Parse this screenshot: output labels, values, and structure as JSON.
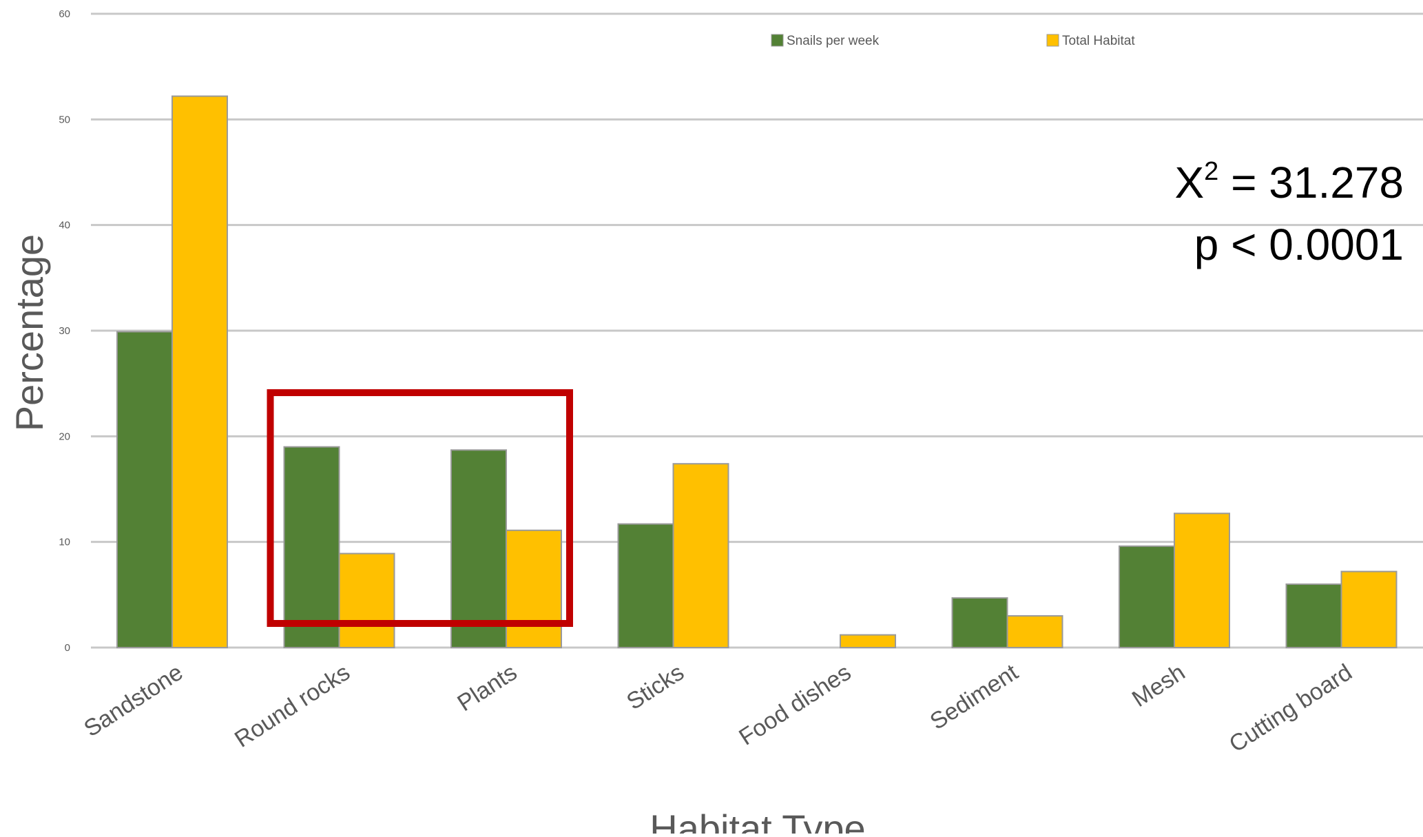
{
  "chart_data": {
    "type": "bar",
    "title": "",
    "xlabel": "Habitat Type",
    "ylabel": "Percentage",
    "ylim": [
      0,
      60
    ],
    "yticks": [
      0,
      10,
      20,
      30,
      40,
      50,
      60
    ],
    "grid": true,
    "legend_position": "top",
    "categories": [
      "Sandstone",
      "Round rocks",
      "Plants",
      "Sticks",
      "Food dishes",
      "Sediment",
      "Mesh",
      "Cutting board"
    ],
    "series": [
      {
        "name": "Snails per week",
        "color": "#538135",
        "values": [
          29.9,
          19.0,
          18.7,
          11.7,
          0,
          4.7,
          9.6,
          6.0
        ]
      },
      {
        "name": "Total Habitat",
        "color": "#FFC000",
        "values": [
          52.2,
          8.9,
          11.1,
          17.4,
          1.2,
          3.0,
          12.7,
          7.2
        ]
      }
    ],
    "annotations": {
      "chi_symbol": "X",
      "chi_exponent": "2",
      "chi_rest": " = 31.278",
      "p_value": "p < 0.0001"
    },
    "highlight": {
      "categories": [
        "Round rocks",
        "Plants"
      ],
      "color": "#C00000"
    }
  }
}
